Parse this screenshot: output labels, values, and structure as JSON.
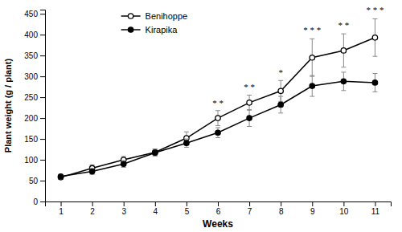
{
  "chart_data": {
    "type": "line",
    "xlabel": "Weeks",
    "ylabel": "Plant weight (g / plant)",
    "x": [
      1,
      2,
      3,
      4,
      5,
      6,
      7,
      8,
      9,
      10,
      11
    ],
    "series": [
      {
        "name": "Benihoppe",
        "color": "#000000",
        "marker": "circle-open",
        "line_style": "solid",
        "values": [
          58,
          80,
          100,
          118,
          152,
          200,
          237,
          265,
          345,
          362,
          393
        ],
        "error": [
          5,
          8,
          8,
          8,
          15,
          18,
          18,
          25,
          45,
          40,
          45
        ]
      },
      {
        "name": "Kirapika",
        "color": "#000000",
        "marker": "circle",
        "line_style": "solid",
        "values": [
          60,
          72,
          90,
          117,
          140,
          165,
          200,
          232,
          277,
          288,
          285
        ],
        "error": [
          5,
          7,
          8,
          8,
          10,
          12,
          20,
          20,
          25,
          22,
          22
        ]
      }
    ],
    "annotations": [
      {
        "x": 6,
        "y": 230,
        "text": "* *"
      },
      {
        "x": 7,
        "y": 267,
        "text": "* *"
      },
      {
        "x": 8,
        "y": 302,
        "text": "*"
      },
      {
        "x": 9,
        "y": 404,
        "text": "* * *"
      },
      {
        "x": 10,
        "y": 416,
        "text": "* *"
      },
      {
        "x": 11,
        "y": 452,
        "text": "* * *"
      }
    ],
    "xlim": [
      0.5,
      11.5
    ],
    "xticks": [
      1,
      2,
      3,
      4,
      5,
      6,
      7,
      8,
      9,
      10,
      11
    ],
    "ylim": [
      0,
      460
    ],
    "yticks": [
      0,
      50,
      100,
      150,
      200,
      250,
      300,
      350,
      400,
      450
    ],
    "grid": false,
    "legend": "upper left"
  }
}
